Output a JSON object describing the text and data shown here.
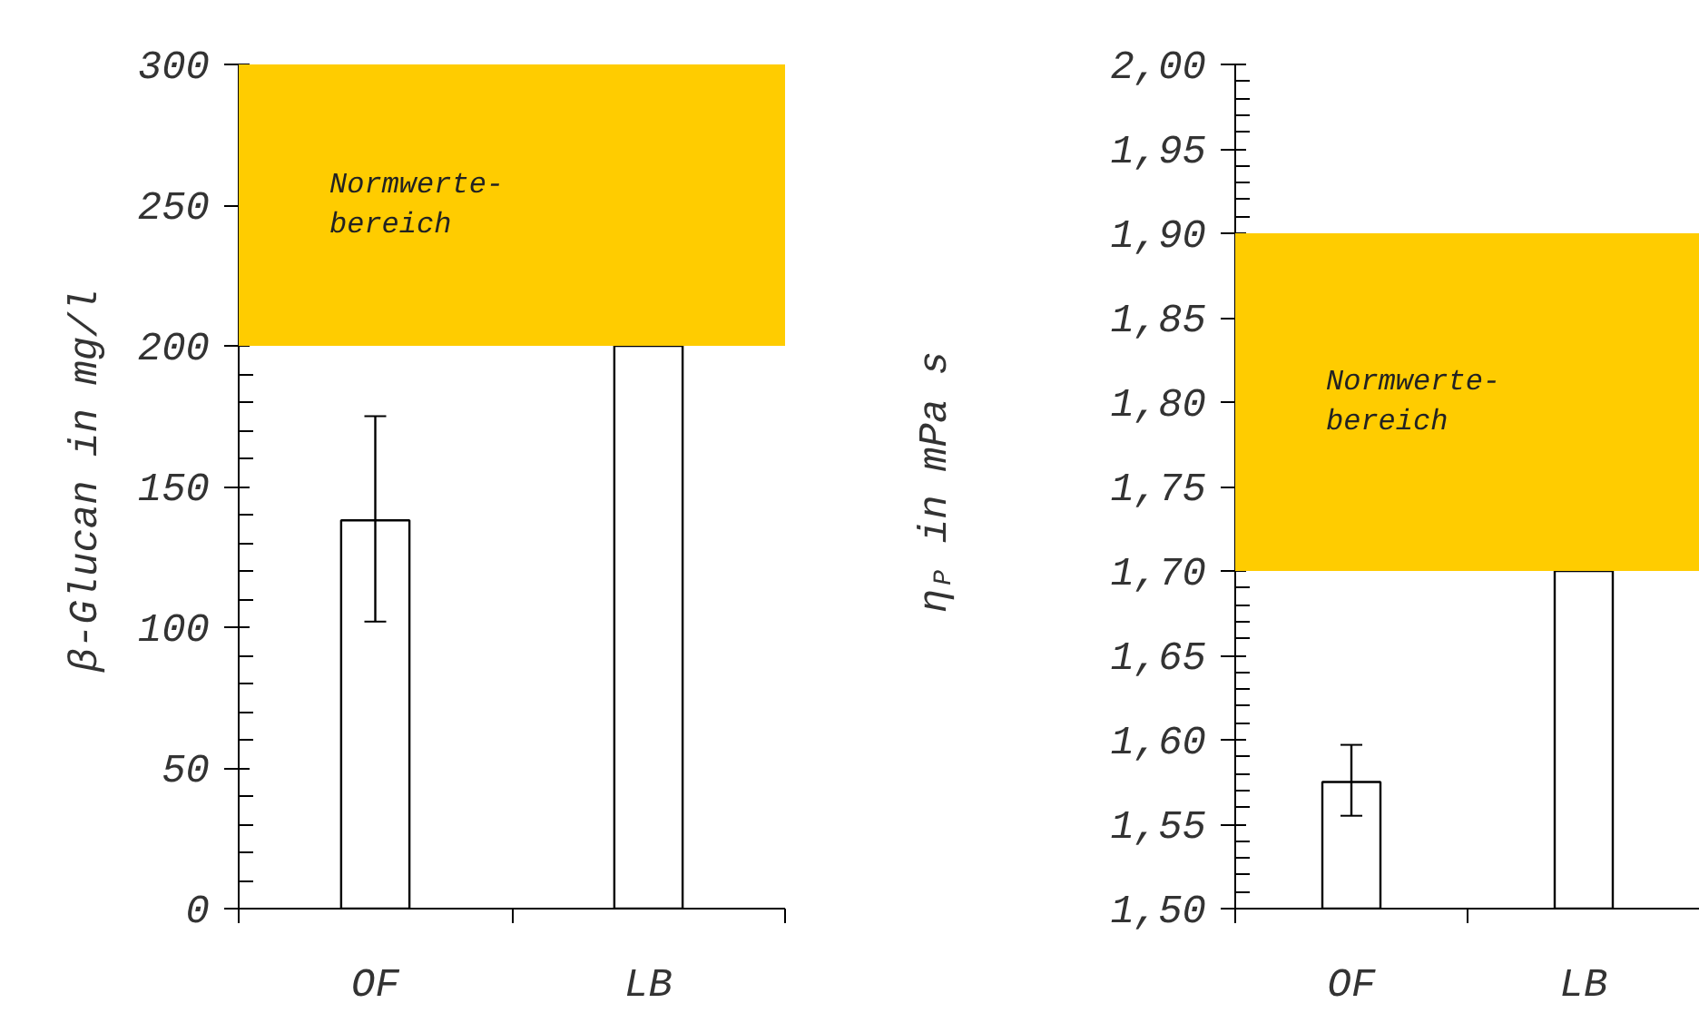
{
  "chart_data": [
    {
      "type": "bar",
      "categories": [
        "OF",
        "LB"
      ],
      "values": [
        138,
        200
      ],
      "errors": [
        [
          102,
          175
        ],
        null
      ],
      "color": "#ffffff",
      "ylabel": "β-Glucan in mg/l",
      "ylim": [
        0,
        300
      ],
      "yticks": [
        0,
        50,
        100,
        150,
        200,
        250,
        300
      ],
      "bands": [
        {
          "axis": "y",
          "from": 200,
          "to": 300,
          "label": "Normwerte-\nbereich",
          "color": "#ffcc00"
        }
      ]
    },
    {
      "type": "bar",
      "categories": [
        "OF",
        "LB"
      ],
      "values": [
        1.575,
        1.7
      ],
      "errors": [
        [
          1.555,
          1.597
        ],
        null
      ],
      "color": "#ffffff",
      "ylabel": "η$_{P}$ in mPa s",
      "ylim": [
        1.5,
        2.0
      ],
      "yticks": [
        {
          "value": 1.5,
          "label": "1,50"
        },
        {
          "value": 1.55,
          "label": "1,55"
        },
        {
          "value": 1.6,
          "label": "1,60"
        },
        {
          "value": 1.65,
          "label": "1,65"
        },
        {
          "value": 1.7,
          "label": "1,70"
        },
        {
          "value": 1.75,
          "label": "1,75"
        },
        {
          "value": 1.8,
          "label": "1,80"
        },
        {
          "value": 1.85,
          "label": "1,85"
        },
        {
          "value": 1.9,
          "label": "1,90"
        },
        {
          "value": 1.95,
          "label": "1,95"
        },
        {
          "value": 2.0,
          "label": "2,00"
        }
      ],
      "bands": [
        {
          "axis": "y",
          "from": 1.7,
          "to": 1.9,
          "label": "Normwerte-\nbereich",
          "color": "#ffcc00"
        }
      ]
    }
  ]
}
